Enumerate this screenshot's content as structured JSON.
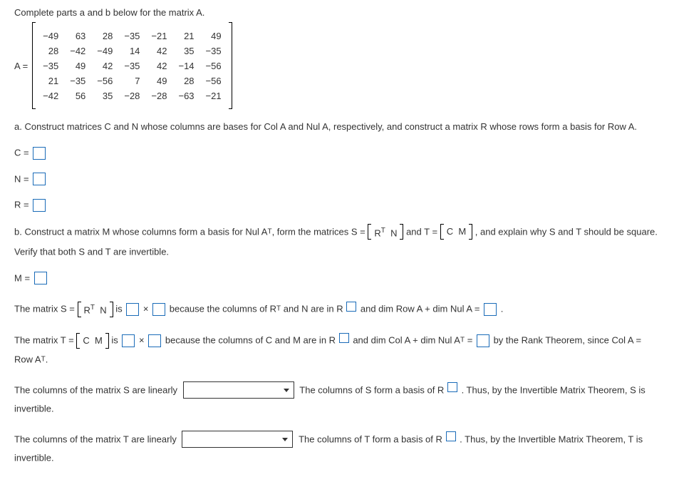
{
  "intro": "Complete parts a and b below for the matrix A.",
  "matrixA": {
    "label": "A =",
    "rows": [
      [
        "−49",
        "63",
        "28",
        "−35",
        "−21",
        "21",
        "49"
      ],
      [
        "28",
        "−42",
        "−49",
        "14",
        "42",
        "35",
        "−35"
      ],
      [
        "−35",
        "49",
        "42",
        "−35",
        "42",
        "−14",
        "−56"
      ],
      [
        "21",
        "−35",
        "−56",
        "7",
        "49",
        "28",
        "−56"
      ],
      [
        "−42",
        "56",
        "35",
        "−28",
        "−28",
        "−63",
        "−21"
      ]
    ]
  },
  "partA": "a. Construct matrices C and N whose columns are bases for Col A and Nul A, respectively, and construct a matrix R whose rows form a basis for Row A.",
  "labels": {
    "C": "C =",
    "N": "N =",
    "R": "R =",
    "M": "M ="
  },
  "partB": {
    "t1": "b. Construct a matrix M whose columns form a basis for Nul A",
    "t2": ", form the matrices S =",
    "t3": " and T =",
    "t4": ", and explain why S and T should be square. Verify that both S and T are invertible.",
    "RT": "R",
    "RTsup": "T",
    "N": "N",
    "C": "C",
    "M": "M"
  },
  "lineS": {
    "t1": "The matrix S =",
    "RT": "R",
    "RTsup": "T",
    "N": "N",
    "t2": " is ",
    "t3": " × ",
    "t4": " because the columns of R",
    "t4b": " and N are in R",
    "t5": " and dim Row A + dim Nul A = ",
    "t6": "."
  },
  "lineT": {
    "t1": "The matrix T =",
    "C": "C",
    "M": "M",
    "t2": " is ",
    "t3": " × ",
    "t4": " because the columns of C and M are in R",
    "t5": " and dim Col A + dim Nul A",
    "t5sup": "T",
    "t6": " = ",
    "t7": " by the Rank Theorem, since Col A = Row A",
    "t8": "."
  },
  "lineSInv": {
    "t1": "The columns of the matrix S are linearly ",
    "t2": " The columns of S form a basis of R",
    "t3": ". Thus, by the Invertible Matrix Theorem, S is invertible."
  },
  "lineTInv": {
    "t1": "The columns of the matrix T are linearly ",
    "t2": " The columns of T form a basis of R",
    "t3": ". Thus, by the Invertible Matrix Theorem, T is invertible."
  }
}
